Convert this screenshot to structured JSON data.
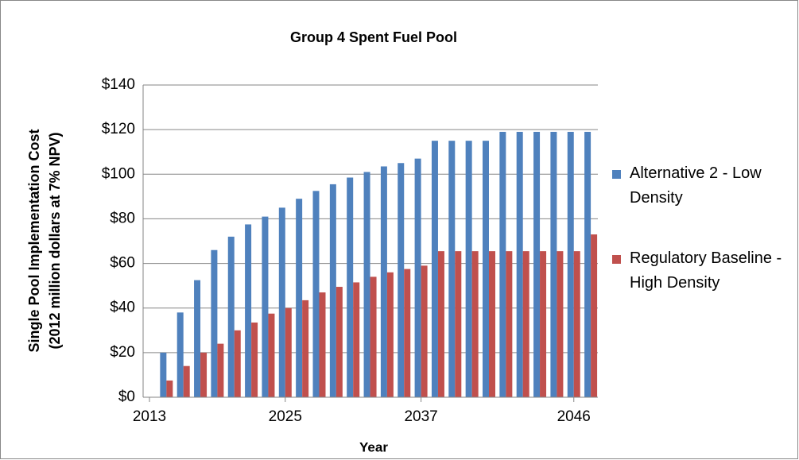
{
  "chart_data": {
    "type": "bar",
    "title": "Group 4 Spent Fuel Pool",
    "xlabel": "Year",
    "ylabel": [
      "Single Pool Implementation Cost",
      "(2012 million dollars at 7% NPV)"
    ],
    "categories": [
      "2013",
      null,
      null,
      null,
      null,
      null,
      null,
      null,
      "2025",
      null,
      null,
      null,
      null,
      null,
      null,
      null,
      "2037",
      null,
      null,
      null,
      null,
      null,
      null,
      null,
      null,
      "2046",
      null
    ],
    "series": [
      {
        "name": "Alternative 2 - Low Density",
        "color": "#4f81bd",
        "values": [
          null,
          20,
          38,
          52.5,
          66,
          72,
          77.5,
          81,
          85,
          89,
          92.5,
          95.5,
          98.5,
          101,
          103.5,
          105,
          107,
          115,
          115,
          115,
          115,
          119,
          119,
          119,
          119,
          119,
          119
        ]
      },
      {
        "name": "Regulatory Baseline - High Density",
        "color": "#c0504d",
        "values": [
          null,
          7.5,
          14,
          20,
          24,
          30,
          33.5,
          37.5,
          40,
          43.5,
          47,
          49.5,
          51.5,
          54,
          56,
          57.5,
          59,
          65.5,
          65.5,
          65.5,
          65.5,
          65.5,
          65.5,
          65.5,
          65.5,
          65.5,
          73
        ]
      }
    ],
    "ylim": [
      0,
      140
    ],
    "yticks": [
      {
        "value": 0,
        "label": "$0"
      },
      {
        "value": 20,
        "label": "$20"
      },
      {
        "value": 40,
        "label": "$40"
      },
      {
        "value": 60,
        "label": "$60"
      },
      {
        "value": 80,
        "label": "$80"
      },
      {
        "value": 100,
        "label": "$100"
      },
      {
        "value": 120,
        "label": "$120"
      },
      {
        "value": 140,
        "label": "$140"
      }
    ],
    "grid": true,
    "legend": "right"
  }
}
